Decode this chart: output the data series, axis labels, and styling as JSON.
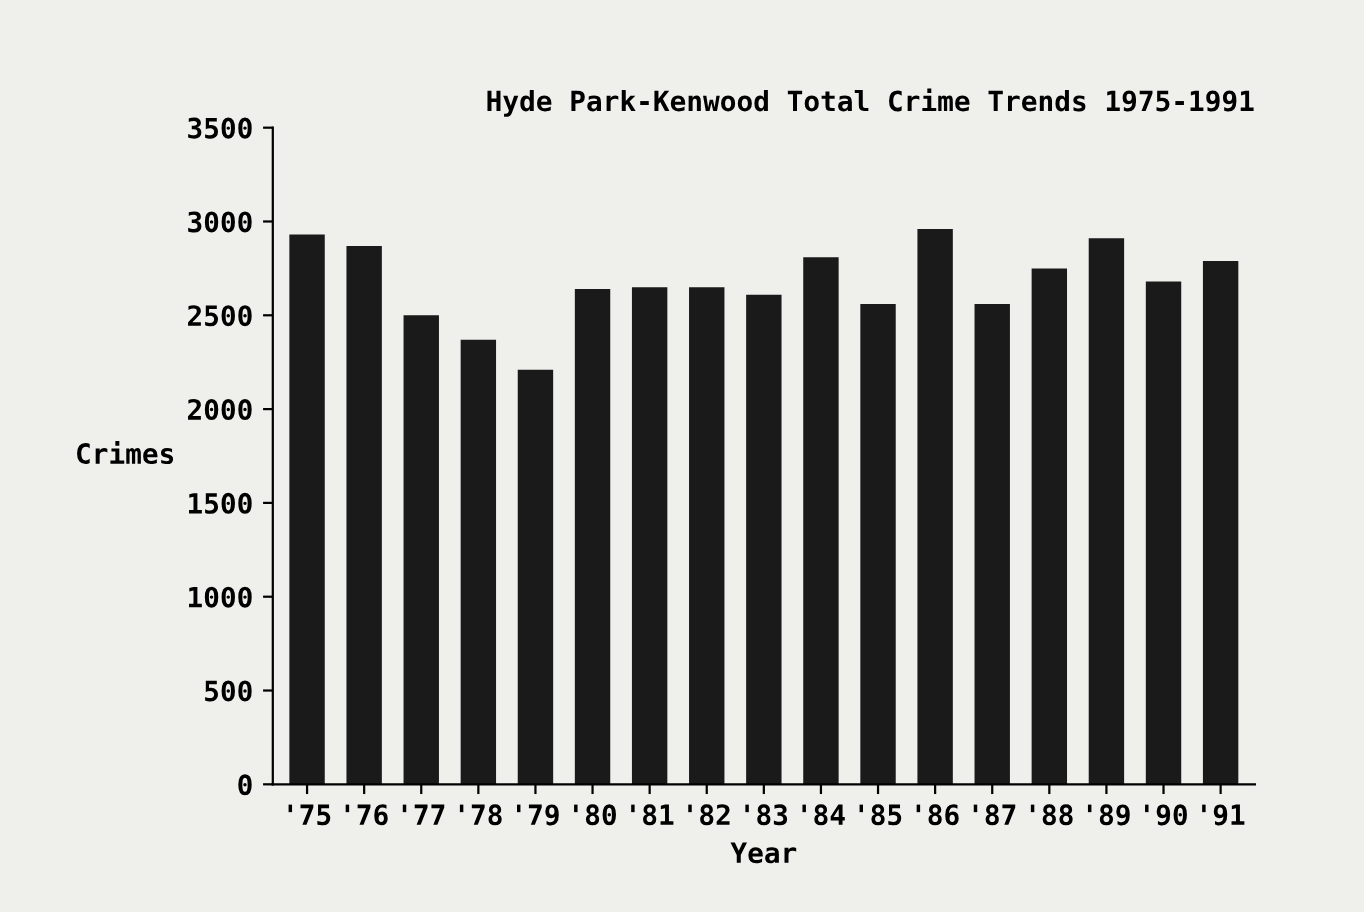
{
  "chart_data": {
    "type": "bar",
    "title": "Hyde Park-Kenwood Total Crime Trends 1975-1991",
    "xlabel": "Year",
    "ylabel": "Crimes",
    "categories": [
      "'75",
      "'76",
      "'77",
      "'78",
      "'79",
      "'80",
      "'81",
      "'82",
      "'83",
      "'84",
      "'85",
      "'86",
      "'87",
      "'88",
      "'89",
      "'90",
      "'91"
    ],
    "values": [
      2930,
      2870,
      2500,
      2370,
      2210,
      2640,
      2650,
      2650,
      2610,
      2810,
      2560,
      2960,
      2560,
      2750,
      2910,
      2680,
      2790
    ],
    "color": "#1a1a1a",
    "ylim": [
      0,
      3500
    ],
    "yticks": [
      0,
      500,
      1000,
      1500,
      2000,
      2500,
      3000,
      3500
    ],
    "grid": false,
    "legend": false
  }
}
